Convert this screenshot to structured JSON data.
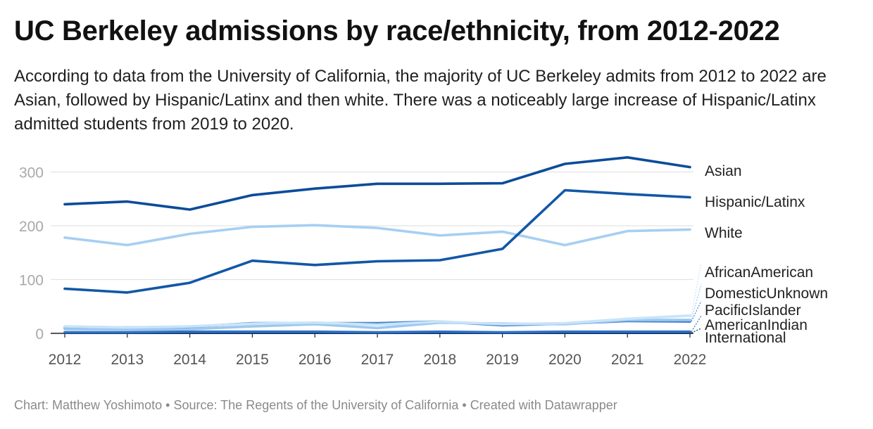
{
  "title": "UC Berkeley admissions by race/ethnicity, from 2012-2022",
  "subtitle": "According to data from the University of California, the majority of UC Berkeley admits from 2012 to 2022 are Asian, followed by Hispanic/Latinx and then white. There was a noticeably large increase of Hispanic/Latinx admitted students from 2019 to 2020.",
  "footer": {
    "chart_by": "Chart: Matthew Yoshimoto",
    "source": "Source: The Regents of the University of California",
    "created": "Created with Datawrapper",
    "separator": "•"
  },
  "chart_data": {
    "type": "line",
    "x": [
      2012,
      2013,
      2014,
      2015,
      2016,
      2017,
      2018,
      2019,
      2020,
      2021,
      2022
    ],
    "ylim": [
      0,
      330
    ],
    "yticks": [
      0,
      100,
      200,
      300
    ],
    "grid": true,
    "legend": "direct labels at line ends (right)",
    "series": [
      {
        "name": "Asian",
        "color": "#0b4c9a",
        "values": [
          240,
          245,
          230,
          257,
          269,
          278,
          278,
          279,
          315,
          327,
          309
        ]
      },
      {
        "name": "Hispanic/Latinx",
        "color": "#1257a6",
        "values": [
          83,
          76,
          94,
          135,
          127,
          134,
          136,
          157,
          266,
          259,
          253
        ]
      },
      {
        "name": "White",
        "color": "#a6cff3",
        "values": [
          178,
          164,
          185,
          198,
          201,
          196,
          182,
          189,
          164,
          190,
          193
        ]
      },
      {
        "name": "AfricanAmerican",
        "color": "#c9e4f8",
        "values": [
          13,
          11,
          13,
          18,
          20,
          16,
          22,
          17,
          19,
          27,
          33
        ]
      },
      {
        "name": "DomesticUnknown",
        "color": "#9dc8ef",
        "values": [
          8,
          7,
          8,
          13,
          17,
          10,
          20,
          18,
          17,
          25,
          25
        ]
      },
      {
        "name": "PacificIslander",
        "color": "#4a86d0",
        "values": [
          10,
          11,
          12,
          19,
          19,
          19,
          22,
          15,
          18,
          23,
          22
        ]
      },
      {
        "name": "AmericanIndian",
        "color": "#2e6fc4",
        "values": [
          2,
          2,
          3,
          3,
          3,
          2,
          3,
          2,
          3,
          3,
          3
        ]
      },
      {
        "name": "International",
        "color": "#0a2f5e",
        "values": [
          1,
          1,
          1,
          1,
          1,
          1,
          1,
          1,
          1,
          1,
          1
        ]
      }
    ]
  }
}
